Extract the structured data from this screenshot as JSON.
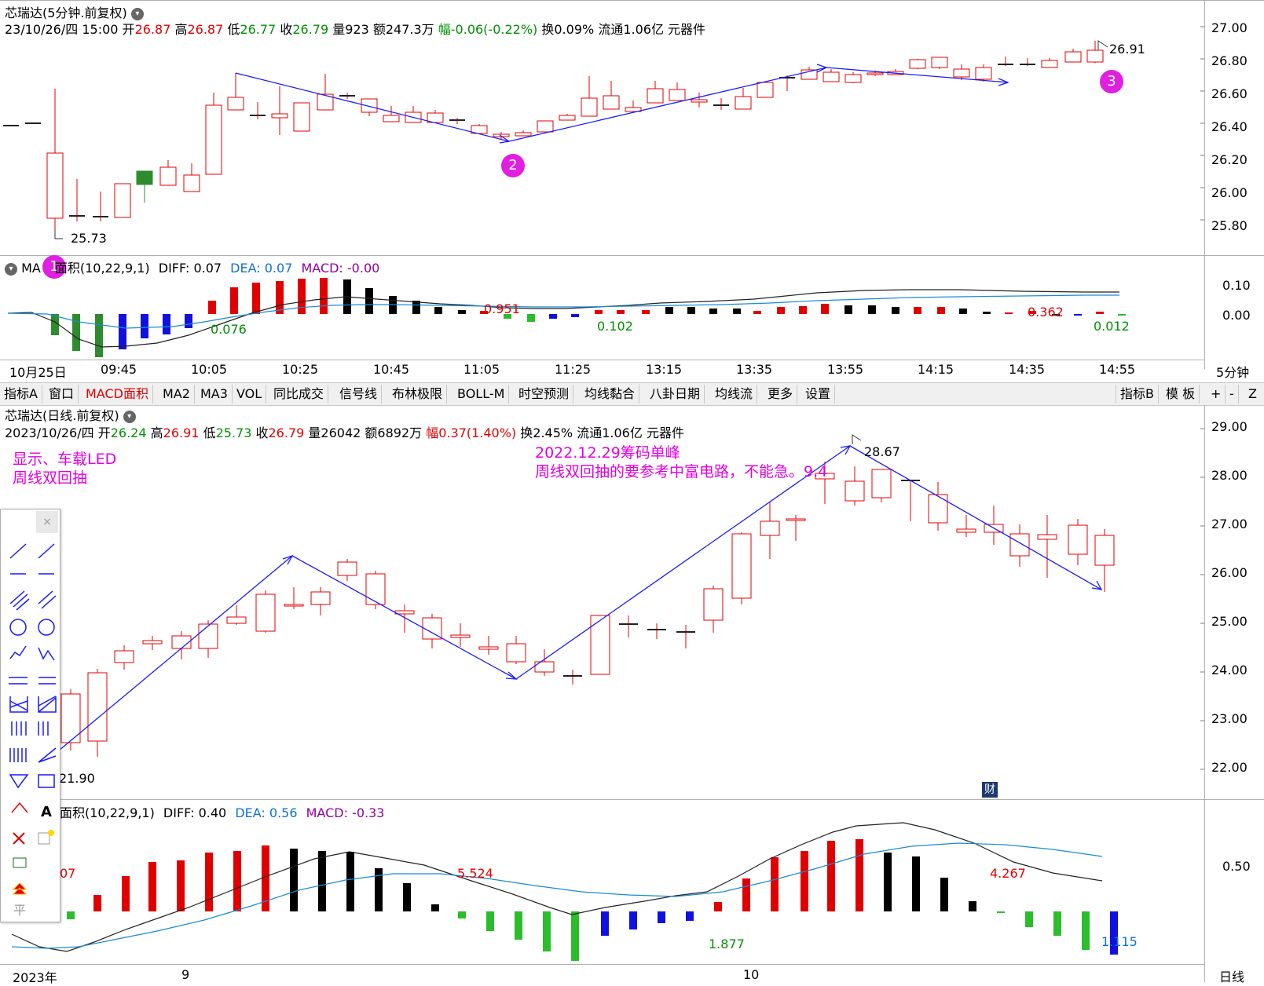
{
  "top_panel": {
    "title": "芯瑞达(5分钟.前复权)",
    "info": {
      "datetime": "23/10/26/四 15:00",
      "open_label": "开",
      "open": "26.87",
      "high_label": "高",
      "high": "26.87",
      "low_label": "低",
      "low": "26.77",
      "close_label": "收",
      "close": "26.79",
      "vol": "量923",
      "amount": "额247.3万",
      "change": "幅-0.06(-0.22%)",
      "turnover": "换0.09%",
      "float": "流通1.06亿",
      "sector": "元器件"
    },
    "price_ticks": [
      "27.00",
      "26.80",
      "26.60",
      "26.40",
      "26.20",
      "26.00",
      "25.80"
    ],
    "low_mark": "25.73",
    "high_mark": "26.91",
    "badges": [
      "1",
      "2",
      "3"
    ],
    "macd_header": {
      "name_a": "MA",
      "name_b": "面积(10,22,9,1)",
      "diff": "DIFF: 0.07",
      "dea": "DEA: 0.07",
      "macd": "MACD: -0.00"
    },
    "macd_ticks": [
      "0.10",
      "0.00"
    ],
    "macd_labels": [
      "0.076",
      "0.951",
      "0.102",
      "0.362",
      "0.012"
    ],
    "time_axis": [
      "10月25日",
      "09:45",
      "10:05",
      "10:25",
      "10:45",
      "11:05",
      "11:25",
      "13:15",
      "13:35",
      "13:55",
      "14:15",
      "14:35",
      "14:55"
    ],
    "period_label": "5分钟"
  },
  "toolbar": {
    "items": [
      "指标A",
      "窗口",
      "MACD面积",
      "MA2",
      "MA3",
      "VOL",
      "同比成交",
      "信号线",
      "布林极限",
      "BOLL-M",
      "时空预测",
      "均线黏合",
      "八卦日期",
      "均线流",
      "更多",
      "设置"
    ],
    "right_items": [
      "指标B",
      "模 板",
      "+",
      "-",
      "Z"
    ]
  },
  "bottom_panel": {
    "title": "芯瑞达(日线.前复权)",
    "info": {
      "date": "2023/10/26/四",
      "open_label": "开",
      "open": "26.24",
      "high_label": "高",
      "high": "26.91",
      "low_label": "低",
      "low": "25.73",
      "close_label": "收",
      "close": "26.79",
      "vol": "量26042",
      "amount": "额6892万",
      "change": "幅0.37(1.40%)",
      "turnover": "换2.45%",
      "float": "流通1.06亿",
      "sector": "元器件"
    },
    "annotation_left_1": "显示、车载LED",
    "annotation_left_2": "周线双回抽",
    "annotation_mid_1": "2022.12.29筹码单峰",
    "annotation_mid_2": "周线双回抽的要参考中富电路，不能急。9.4",
    "price_ticks": [
      "29.00",
      "28.00",
      "27.00",
      "26.00",
      "25.00",
      "24.00",
      "23.00",
      "22.00"
    ],
    "low_mark": "21.90",
    "high_mark": "28.67",
    "cai_badge": "财",
    "macd_header": {
      "name": "面积(10,22,9,1)",
      "diff": "DIFF: 0.40",
      "dea": "DEA: 0.56",
      "macd": "MACD: -0.33"
    },
    "macd_ticks": [
      "0.50"
    ],
    "macd_labels": [
      "07",
      "5.524",
      "1.877",
      "4.267",
      "1.115"
    ],
    "time_axis": [
      "2023年",
      "9",
      "10"
    ],
    "period_label": "日线"
  },
  "draw_tools": {
    "close": "×",
    "text_tool": "A",
    "flat_label": "平"
  },
  "colors": {
    "up": "#e00000",
    "down": "#2e8b2e",
    "trend_line": "#1a1aff",
    "badge": "#e020e0",
    "annotation": "#e000e0",
    "dea": "#1a8ad4",
    "diff": "#222222"
  }
}
